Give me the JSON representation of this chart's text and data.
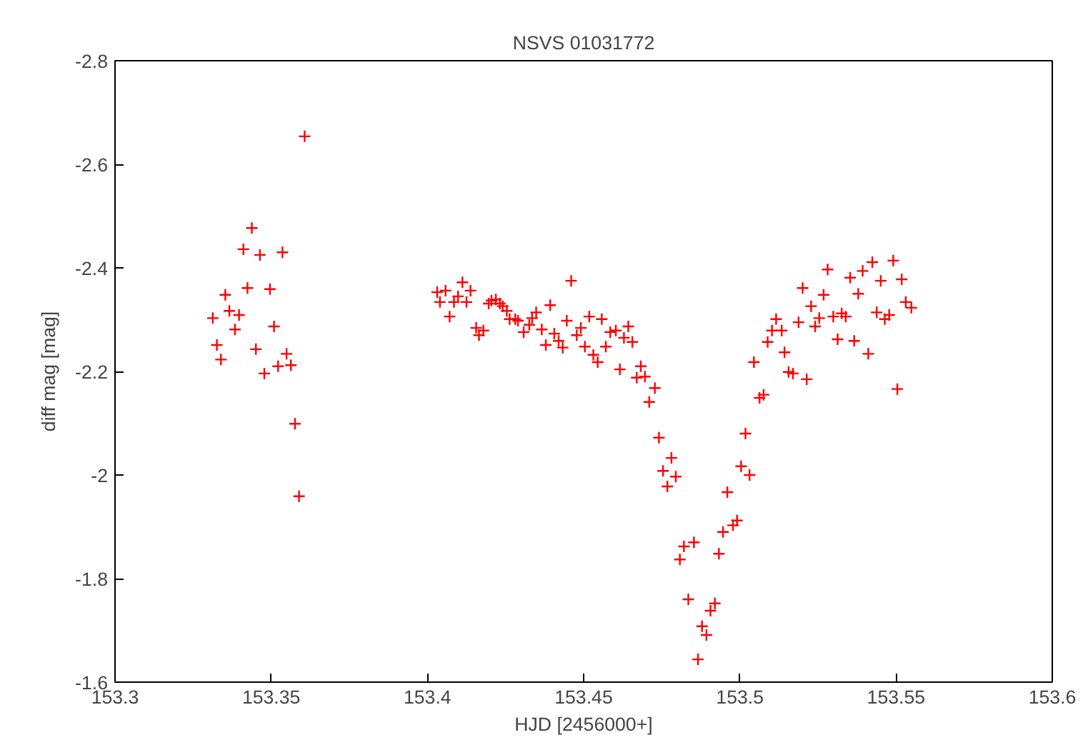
{
  "chart_data": {
    "type": "scatter",
    "title": "NSVS 01031772",
    "xlabel": "HJD [2456000+]",
    "ylabel": "diff mag [mag]",
    "xlim": [
      153.3,
      153.6
    ],
    "xticks": [
      153.3,
      153.35,
      153.4,
      153.45,
      153.5,
      153.55,
      153.6
    ],
    "ylim": [
      -1.6,
      -2.8
    ],
    "yticks": [
      -2.8,
      -2.6,
      -2.4,
      -2.2,
      -2,
      -1.8,
      -1.6
    ],
    "grid": false,
    "marker": "cross",
    "series": [
      {
        "color": "#ff0000",
        "x": [
          153.3313,
          153.3326,
          153.3339,
          153.3353,
          153.3366,
          153.3384,
          153.3397,
          153.3411,
          153.3424,
          153.3438,
          153.3451,
          153.3464,
          153.3478,
          153.3496,
          153.3509,
          153.3522,
          153.3536,
          153.3549,
          153.3563,
          153.3576,
          153.3589,
          153.3607,
          153.4031,
          153.404,
          153.4058,
          153.4071,
          153.4085,
          153.4098,
          153.4112,
          153.4125,
          153.4138,
          153.4156,
          153.4165,
          153.4179,
          153.4196,
          153.4205,
          153.4219,
          153.4232,
          153.4241,
          153.4254,
          153.4263,
          153.4281,
          153.429,
          153.4308,
          153.4326,
          153.4335,
          153.4348,
          153.4366,
          153.4379,
          153.4393,
          153.4406,
          153.442,
          153.4433,
          153.4446,
          153.446,
          153.4478,
          153.4491,
          153.4504,
          153.4518,
          153.4531,
          153.4545,
          153.4558,
          153.4571,
          153.4585,
          153.4603,
          153.4616,
          153.4629,
          153.4643,
          153.4656,
          153.467,
          153.4683,
          153.4696,
          153.471,
          153.4728,
          153.4741,
          153.4754,
          153.4768,
          153.4781,
          153.4795,
          153.4808,
          153.4821,
          153.4835,
          153.4853,
          153.4866,
          153.4879,
          153.4893,
          153.4906,
          153.492,
          153.4933,
          153.4946,
          153.496,
          153.4978,
          153.4991,
          153.5004,
          153.5018,
          153.5031,
          153.5045,
          153.5063,
          153.5076,
          153.5089,
          153.5103,
          153.5116,
          153.5134,
          153.5143,
          153.5156,
          153.517,
          153.5188,
          153.5201,
          153.5214,
          153.5228,
          153.5241,
          153.5254,
          153.5268,
          153.5281,
          153.5299,
          153.5313,
          153.5326,
          153.5339,
          153.5353,
          153.5366,
          153.5379,
          153.5393,
          153.5411,
          153.5424,
          153.5438,
          153.5451,
          153.5464,
          153.5478,
          153.5491,
          153.5504,
          153.5518,
          153.5531,
          153.5549
        ],
        "values": [
          -2.303,
          -2.251,
          -2.223,
          -2.348,
          -2.317,
          -2.281,
          -2.309,
          -2.436,
          -2.361,
          -2.477,
          -2.243,
          -2.425,
          -2.196,
          -2.359,
          -2.287,
          -2.21,
          -2.43,
          -2.234,
          -2.212,
          -2.099,
          -1.959,
          -2.654,
          -2.353,
          -2.334,
          -2.356,
          -2.306,
          -2.334,
          -2.345,
          -2.372,
          -2.334,
          -2.356,
          -2.284,
          -2.27,
          -2.279,
          -2.331,
          -2.337,
          -2.339,
          -2.331,
          -2.326,
          -2.317,
          -2.301,
          -2.301,
          -2.298,
          -2.276,
          -2.29,
          -2.303,
          -2.314,
          -2.281,
          -2.251,
          -2.328,
          -2.273,
          -2.259,
          -2.246,
          -2.298,
          -2.375,
          -2.27,
          -2.284,
          -2.248,
          -2.306,
          -2.232,
          -2.218,
          -2.301,
          -2.248,
          -2.276,
          -2.279,
          -2.204,
          -2.265,
          -2.287,
          -2.257,
          -2.188,
          -2.21,
          -2.19,
          -2.141,
          -2.168,
          -2.072,
          -2.008,
          -1.978,
          -2.033,
          -1.997,
          -1.837,
          -1.862,
          -1.76,
          -1.87,
          -1.644,
          -1.708,
          -1.691,
          -1.738,
          -1.752,
          -1.848,
          -1.89,
          -1.967,
          -1.903,
          -1.912,
          -2.017,
          -2.08,
          -2.0,
          -2.218,
          -2.149,
          -2.155,
          -2.257,
          -2.279,
          -2.301,
          -2.279,
          -2.237,
          -2.199,
          -2.196,
          -2.295,
          -2.361,
          -2.185,
          -2.326,
          -2.287,
          -2.303,
          -2.348,
          -2.397,
          -2.306,
          -2.262,
          -2.312,
          -2.306,
          -2.381,
          -2.259,
          -2.35,
          -2.394,
          -2.234,
          -2.411,
          -2.314,
          -2.375,
          -2.301,
          -2.309,
          -2.414,
          -2.166,
          -2.378,
          -2.334,
          -2.323
        ]
      }
    ]
  }
}
